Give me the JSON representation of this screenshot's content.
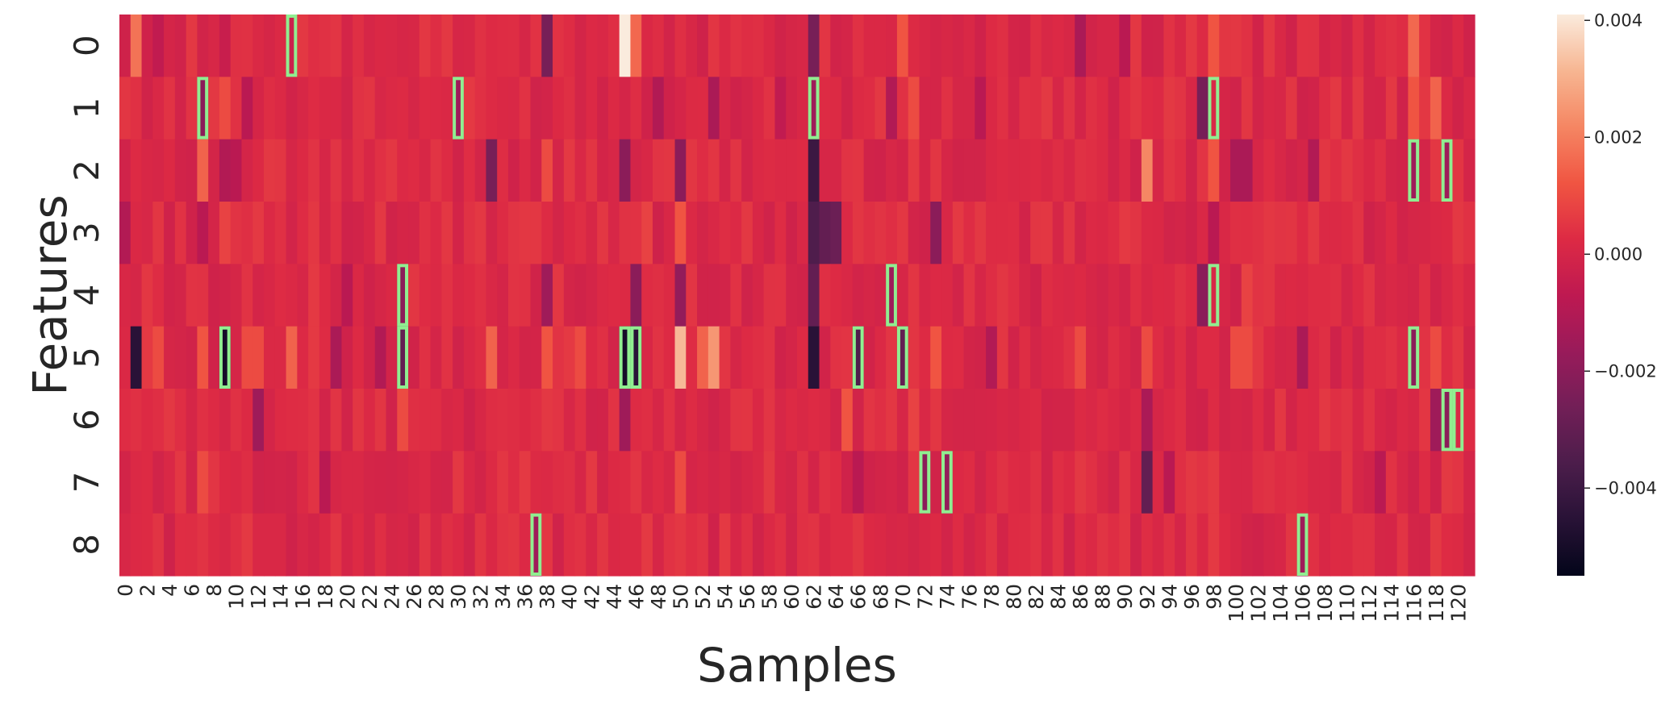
{
  "chart_data": {
    "type": "heatmap",
    "xlabel": "Samples",
    "ylabel": "Features",
    "n_samples": 122,
    "x_tick_labels": [
      "0",
      "2",
      "4",
      "6",
      "8",
      "10",
      "12",
      "14",
      "16",
      "18",
      "20",
      "22",
      "24",
      "26",
      "28",
      "30",
      "32",
      "34",
      "36",
      "38",
      "40",
      "42",
      "44",
      "46",
      "48",
      "50",
      "52",
      "54",
      "56",
      "58",
      "60",
      "62",
      "64",
      "66",
      "68",
      "70",
      "72",
      "74",
      "76",
      "78",
      "80",
      "82",
      "84",
      "86",
      "88",
      "90",
      "92",
      "94",
      "96",
      "98",
      "100",
      "102",
      "104",
      "106",
      "108",
      "110",
      "112",
      "114",
      "116",
      "118",
      "120"
    ],
    "y_tick_labels": [
      "0",
      "1",
      "2",
      "3",
      "4",
      "5",
      "6",
      "7",
      "8"
    ],
    "colorbar": {
      "colormap": "rocket",
      "vmin": -0.0055,
      "vmax": 0.0041,
      "ticks": [
        0.004,
        0.002,
        0.0,
        -0.002,
        -0.004
      ],
      "tick_labels": [
        "0.004",
        "0.002",
        "0.000",
        "−0.002",
        "−0.004"
      ]
    },
    "base_value": 0.0002,
    "notable_cells": [
      [
        0,
        1,
        0.0018
      ],
      [
        0,
        3,
        -0.0006
      ],
      [
        0,
        9,
        -0.0004
      ],
      [
        0,
        15,
        -0.0003
      ],
      [
        0,
        38,
        -0.0025
      ],
      [
        0,
        45,
        0.0042
      ],
      [
        0,
        46,
        0.0016
      ],
      [
        0,
        62,
        -0.0025
      ],
      [
        0,
        70,
        0.0012
      ],
      [
        0,
        86,
        -0.0012
      ],
      [
        0,
        90,
        -0.0008
      ],
      [
        0,
        98,
        0.0012
      ],
      [
        0,
        116,
        0.0016
      ],
      [
        1,
        7,
        -0.002
      ],
      [
        1,
        9,
        0.001
      ],
      [
        1,
        11,
        -0.0008
      ],
      [
        1,
        30,
        -0.0015
      ],
      [
        1,
        48,
        -0.001
      ],
      [
        1,
        53,
        -0.0012
      ],
      [
        1,
        59,
        -0.0006
      ],
      [
        1,
        62,
        -0.0015
      ],
      [
        1,
        69,
        -0.001
      ],
      [
        1,
        71,
        0.001
      ],
      [
        1,
        77,
        -0.0008
      ],
      [
        1,
        97,
        -0.0025
      ],
      [
        1,
        116,
        0.0012
      ],
      [
        1,
        118,
        0.0015
      ],
      [
        2,
        7,
        0.0015
      ],
      [
        2,
        9,
        -0.001
      ],
      [
        2,
        10,
        -0.0008
      ],
      [
        2,
        33,
        -0.0025
      ],
      [
        2,
        38,
        0.001
      ],
      [
        2,
        45,
        -0.002
      ],
      [
        2,
        50,
        -0.002
      ],
      [
        2,
        62,
        -0.004
      ],
      [
        2,
        92,
        0.0022
      ],
      [
        2,
        98,
        0.0012
      ],
      [
        2,
        100,
        -0.0012
      ],
      [
        2,
        101,
        -0.0012
      ],
      [
        2,
        107,
        -0.001
      ],
      [
        2,
        116,
        -0.0015
      ],
      [
        2,
        119,
        -0.0015
      ],
      [
        3,
        0,
        -0.001
      ],
      [
        3,
        7,
        -0.0008
      ],
      [
        3,
        9,
        0.0008
      ],
      [
        3,
        47,
        0.0008
      ],
      [
        3,
        50,
        0.0012
      ],
      [
        3,
        62,
        -0.0035
      ],
      [
        3,
        63,
        -0.003
      ],
      [
        3,
        64,
        -0.0028
      ],
      [
        3,
        73,
        -0.002
      ],
      [
        3,
        98,
        -0.0008
      ],
      [
        4,
        20,
        -0.0008
      ],
      [
        4,
        25,
        -0.002
      ],
      [
        4,
        38,
        -0.0015
      ],
      [
        4,
        46,
        -0.002
      ],
      [
        4,
        50,
        -0.0018
      ],
      [
        4,
        62,
        -0.003
      ],
      [
        4,
        69,
        -0.0015
      ],
      [
        4,
        97,
        -0.002
      ],
      [
        4,
        101,
        0.0008
      ],
      [
        5,
        1,
        -0.0045
      ],
      [
        5,
        2,
        0.0006
      ],
      [
        5,
        3,
        0.001
      ],
      [
        5,
        7,
        0.0012
      ],
      [
        5,
        9,
        -0.005
      ],
      [
        5,
        11,
        0.001
      ],
      [
        5,
        12,
        0.001
      ],
      [
        5,
        15,
        0.0015
      ],
      [
        5,
        19,
        -0.0012
      ],
      [
        5,
        23,
        -0.001
      ],
      [
        5,
        25,
        -0.003
      ],
      [
        5,
        33,
        0.0015
      ],
      [
        5,
        38,
        0.0012
      ],
      [
        5,
        41,
        0.001
      ],
      [
        5,
        45,
        -0.005
      ],
      [
        5,
        46,
        -0.0045
      ],
      [
        5,
        50,
        0.0032
      ],
      [
        5,
        52,
        0.0015
      ],
      [
        5,
        53,
        0.0025
      ],
      [
        5,
        62,
        -0.0045
      ],
      [
        5,
        66,
        -0.0035
      ],
      [
        5,
        70,
        -0.003
      ],
      [
        5,
        73,
        0.0012
      ],
      [
        5,
        78,
        -0.001
      ],
      [
        5,
        86,
        0.001
      ],
      [
        5,
        92,
        0.001
      ],
      [
        5,
        100,
        0.001
      ],
      [
        5,
        101,
        0.001
      ],
      [
        5,
        106,
        -0.0012
      ],
      [
        5,
        116,
        -0.002
      ],
      [
        5,
        118,
        0.001
      ],
      [
        6,
        12,
        -0.0015
      ],
      [
        6,
        25,
        0.001
      ],
      [
        6,
        45,
        -0.0015
      ],
      [
        6,
        65,
        0.0012
      ],
      [
        6,
        71,
        0.0008
      ],
      [
        6,
        92,
        -0.0012
      ],
      [
        6,
        118,
        -0.0015
      ],
      [
        6,
        119,
        -0.002
      ],
      [
        7,
        7,
        0.001
      ],
      [
        7,
        18,
        -0.0008
      ],
      [
        7,
        50,
        0.001
      ],
      [
        7,
        66,
        -0.0008
      ],
      [
        7,
        72,
        -0.002
      ],
      [
        7,
        74,
        -0.0018
      ],
      [
        7,
        92,
        -0.003
      ],
      [
        7,
        94,
        -0.0008
      ],
      [
        7,
        98,
        0.0006
      ],
      [
        7,
        113,
        -0.0008
      ],
      [
        8,
        37,
        -0.0015
      ],
      [
        8,
        106,
        -0.0015
      ]
    ],
    "highlighted_cells": [
      [
        0,
        15
      ],
      [
        1,
        7
      ],
      [
        1,
        30
      ],
      [
        1,
        62
      ],
      [
        1,
        98
      ],
      [
        2,
        116
      ],
      [
        2,
        119
      ],
      [
        4,
        25
      ],
      [
        4,
        69
      ],
      [
        4,
        98
      ],
      [
        5,
        9
      ],
      [
        5,
        25
      ],
      [
        5,
        45
      ],
      [
        5,
        46
      ],
      [
        5,
        66
      ],
      [
        5,
        70
      ],
      [
        5,
        116
      ],
      [
        6,
        119
      ],
      [
        6,
        120
      ],
      [
        7,
        72
      ],
      [
        7,
        74
      ],
      [
        8,
        37
      ],
      [
        8,
        106
      ]
    ],
    "highlight_color": "#90ee90"
  }
}
